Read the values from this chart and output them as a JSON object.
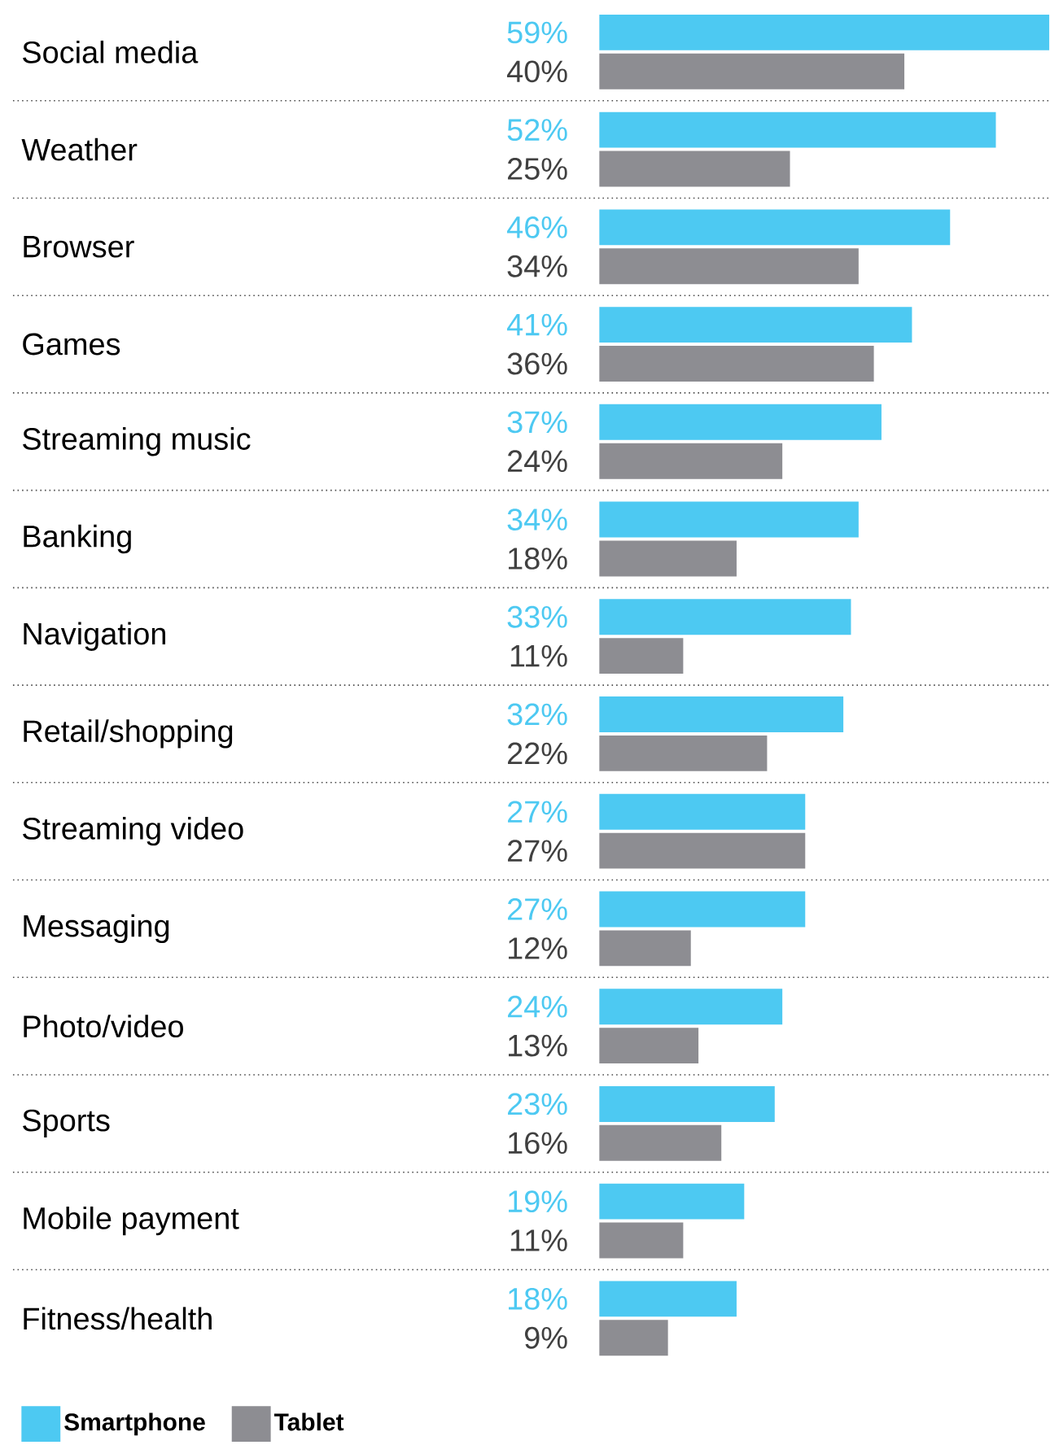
{
  "chart_data": {
    "type": "bar",
    "orientation": "horizontal",
    "categories": [
      "Social media",
      "Weather",
      "Browser",
      "Games",
      "Streaming music",
      "Banking",
      "Navigation",
      "Retail/shopping",
      "Streaming video",
      "Messaging",
      "Photo/video",
      "Sports",
      "Mobile payment",
      "Fitness/health"
    ],
    "series": [
      {
        "name": "Smartphone",
        "color": "#4dc9f2",
        "values": [
          59,
          52,
          46,
          41,
          37,
          34,
          33,
          32,
          27,
          27,
          24,
          23,
          19,
          18
        ],
        "value_labels": [
          "59%",
          "52%",
          "46%",
          "41%",
          "37%",
          "34%",
          "33%",
          "32%",
          "27%",
          "27%",
          "24%",
          "23%",
          "19%",
          "18%"
        ]
      },
      {
        "name": "Tablet",
        "color": "#8d8d92",
        "values": [
          40,
          25,
          34,
          36,
          24,
          18,
          11,
          22,
          27,
          12,
          13,
          16,
          11,
          9
        ],
        "value_labels": [
          "40%",
          "25%",
          "34%",
          "36%",
          "24%",
          "18%",
          "11%",
          "22%",
          "27%",
          "12%",
          "13%",
          "16%",
          "11%",
          "9%"
        ]
      }
    ],
    "xlim": [
      0,
      59
    ],
    "tick_labels": "y",
    "grid": "y",
    "legend": "bottom left"
  }
}
